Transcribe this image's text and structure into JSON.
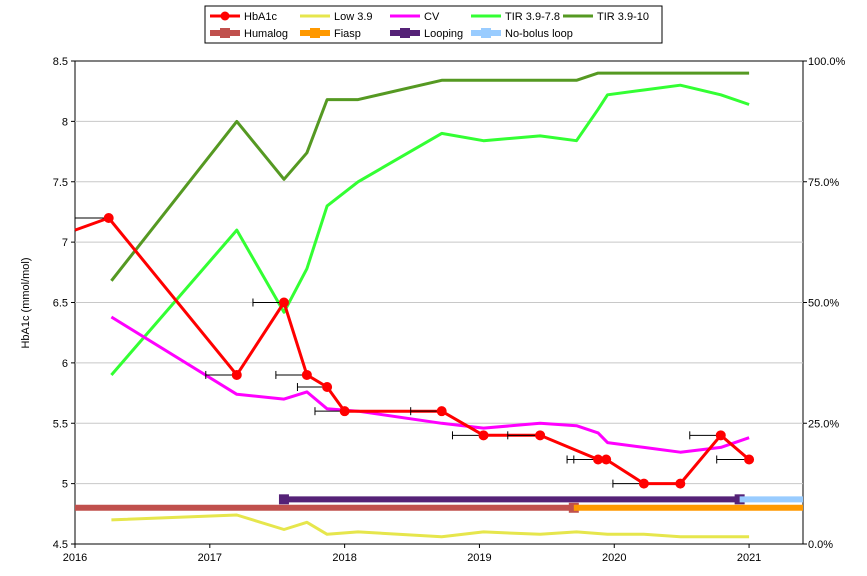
{
  "chart_data": {
    "type": "line",
    "title": "",
    "ylabel": "HbA1c (mmol/mol)",
    "xlabel": "",
    "ylim": [
      4.5,
      8.5
    ],
    "yticks": [
      "4.5",
      "5",
      "5.5",
      "6",
      "6.5",
      "7",
      "7.5",
      "8",
      "8.5"
    ],
    "y2lim": [
      0,
      100
    ],
    "y2ticks": [
      "0.0%",
      "25.0%",
      "50.0%",
      "75.0%",
      "100.0%"
    ],
    "xlim": [
      2016,
      2021.4
    ],
    "xticks": [
      "2016",
      "2017",
      "2018",
      "2019",
      "2020",
      "2021"
    ],
    "grid": "horizontal",
    "legend_position": "top",
    "legend": [
      {
        "label": "HbA1c",
        "color": "#ff0000",
        "style": "line-marker"
      },
      {
        "label": "Low 3.9",
        "color": "#e6e64c",
        "style": "line"
      },
      {
        "label": "CV",
        "color": "#ff00ff",
        "style": "line"
      },
      {
        "label": "TIR 3.9-7.8",
        "color": "#33ff33",
        "style": "line"
      },
      {
        "label": "TIR 3.9-10",
        "color": "#559922",
        "style": "line"
      },
      {
        "label": "Humalog",
        "color": "#c0504d",
        "style": "bar"
      },
      {
        "label": "Fiasp",
        "color": "#ff9900",
        "style": "bar"
      },
      {
        "label": "Looping",
        "color": "#552277",
        "style": "bar"
      },
      {
        "label": "No-bolus loop",
        "color": "#99ccff",
        "style": "bar"
      }
    ],
    "series": [
      {
        "name": "HbA1c",
        "axis": "left",
        "color": "#ff0000",
        "markers": true,
        "x": [
          2016.0,
          2016.25,
          2017.2,
          2017.55,
          2017.72,
          2017.87,
          2018.0,
          2018.72,
          2019.03,
          2019.45,
          2019.88,
          2019.94,
          2020.22,
          2020.49,
          2020.79,
          2021.0
        ],
        "y": [
          7.1,
          7.2,
          5.9,
          6.5,
          5.9,
          5.8,
          5.6,
          5.6,
          5.4,
          5.4,
          5.2,
          5.2,
          5.0,
          5.0,
          5.4,
          5.2
        ],
        "marker_points": [
          1,
          2,
          3,
          4,
          5,
          6,
          7,
          8,
          9,
          10,
          11,
          12,
          13,
          14,
          15
        ],
        "error_left": [
          null,
          0.25,
          0.23,
          0.23,
          0.23,
          0.22,
          0.22,
          0.23,
          0.23,
          0.24,
          0.23,
          0.24,
          0.23,
          0.0,
          0.23,
          0.24
        ]
      },
      {
        "name": "Low 3.9",
        "axis": "right",
        "color": "#e6e64c",
        "x": [
          2016.27,
          2017.2,
          2017.55,
          2017.72,
          2017.87,
          2018.1,
          2018.72,
          2019.03,
          2019.45,
          2019.72,
          2019.95,
          2020.22,
          2020.49,
          2020.79,
          2021.0
        ],
        "y": [
          5.0,
          6.0,
          3.0,
          4.5,
          2.0,
          2.5,
          1.5,
          2.5,
          2.0,
          2.5,
          2.0,
          2.0,
          1.5,
          1.5,
          1.5
        ]
      },
      {
        "name": "CV",
        "axis": "right",
        "color": "#ff00ff",
        "x": [
          2016.27,
          2017.2,
          2017.55,
          2017.72,
          2017.87,
          2018.1,
          2018.72,
          2019.03,
          2019.45,
          2019.72,
          2019.88,
          2019.95,
          2020.22,
          2020.49,
          2020.79,
          2021.0
        ],
        "y": [
          47.0,
          31.0,
          30.0,
          31.5,
          28.0,
          27.5,
          25.0,
          24.0,
          25.0,
          24.5,
          23.0,
          21.0,
          20.0,
          19.0,
          20.0,
          22.0
        ]
      },
      {
        "name": "TIR 3.9-7.8",
        "axis": "right",
        "color": "#33ff33",
        "x": [
          2016.27,
          2017.2,
          2017.55,
          2017.72,
          2017.87,
          2018.1,
          2018.72,
          2019.03,
          2019.45,
          2019.72,
          2019.88,
          2019.95,
          2020.22,
          2020.49,
          2020.79,
          2021.0
        ],
        "y": [
          35.0,
          65.0,
          48.0,
          57.0,
          70.0,
          75.0,
          85.0,
          83.5,
          84.5,
          83.5,
          90.0,
          93.0,
          94.0,
          95.0,
          93.0,
          91.0
        ]
      },
      {
        "name": "TIR 3.9-10",
        "axis": "right",
        "color": "#559922",
        "x": [
          2016.27,
          2017.2,
          2017.55,
          2017.72,
          2017.87,
          2018.1,
          2018.72,
          2019.03,
          2019.45,
          2019.72,
          2019.88,
          2019.95,
          2020.22,
          2020.49,
          2020.79,
          2021.0
        ],
        "y": [
          54.5,
          87.5,
          75.5,
          81.0,
          92.0,
          92.0,
          96.0,
          96.0,
          96.0,
          96.0,
          97.5,
          97.5,
          97.5,
          97.5,
          97.5,
          97.5
        ]
      }
    ],
    "bars": [
      {
        "name": "Humalog",
        "color": "#c0504d",
        "y": 4.8,
        "x_start": 2016.0,
        "x_end": 2019.7,
        "end_marker": true,
        "start_marker": false
      },
      {
        "name": "Fiasp",
        "color": "#ff9900",
        "y": 4.8,
        "x_start": 2019.7,
        "x_end": 2021.4,
        "end_marker": false,
        "start_marker": false
      },
      {
        "name": "Looping",
        "color": "#552277",
        "y": 4.87,
        "x_start": 2017.55,
        "x_end": 2020.93,
        "end_marker": true,
        "start_marker": true
      },
      {
        "name": "No-bolus loop",
        "color": "#99ccff",
        "y": 4.87,
        "x_start": 2020.93,
        "x_end": 2021.4,
        "end_marker": false,
        "start_marker": false
      }
    ]
  }
}
